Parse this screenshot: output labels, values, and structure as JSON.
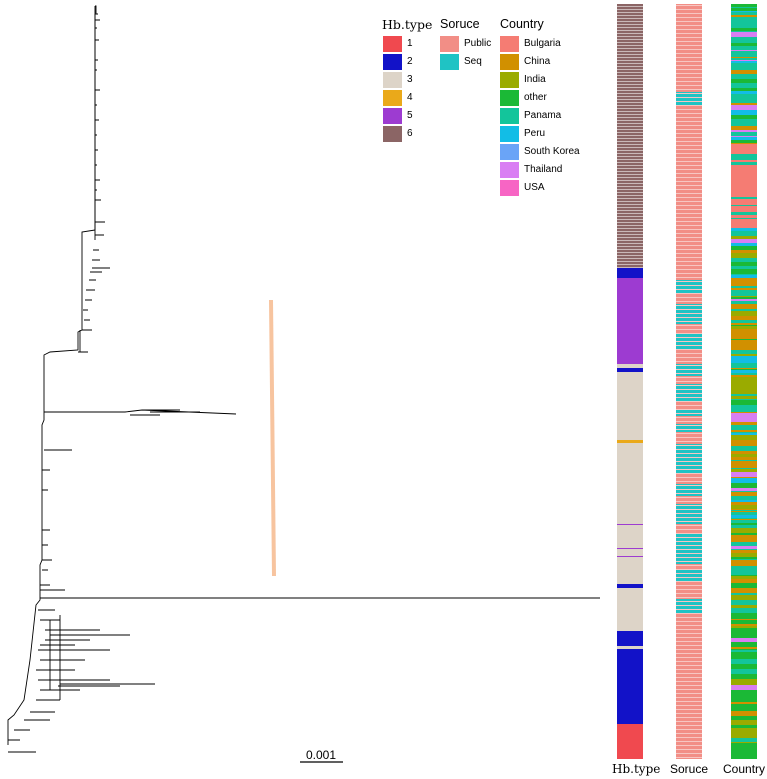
{
  "scale_label": "0.001",
  "legends": [
    {
      "title": "Hb.type",
      "items": [
        {
          "label": "1",
          "color": "#f0494f"
        },
        {
          "label": "2",
          "color": "#1212c8"
        },
        {
          "label": "3",
          "color": "#ddd4c8"
        },
        {
          "label": "4",
          "color": "#eaa91a"
        },
        {
          "label": "5",
          "color": "#9d3bd1"
        },
        {
          "label": "6",
          "color": "#8b6565"
        }
      ]
    },
    {
      "title": "Soruce",
      "items": [
        {
          "label": "Public",
          "color": "#f28e86"
        },
        {
          "label": "Seq",
          "color": "#1fc3c4"
        }
      ]
    },
    {
      "title": "Country",
      "items": [
        {
          "label": "Bulgaria",
          "color": "#f57c73"
        },
        {
          "label": "China",
          "color": "#d19000"
        },
        {
          "label": "India",
          "color": "#9aab00"
        },
        {
          "label": "other",
          "color": "#1bb936"
        },
        {
          "label": "Panama",
          "color": "#13c59b"
        },
        {
          "label": "Peru",
          "color": "#12bde6"
        },
        {
          "label": "South Korea",
          "color": "#6aa4f7"
        },
        {
          "label": "Thailand",
          "color": "#d97ef3"
        },
        {
          "label": "USA",
          "color": "#f765c4"
        }
      ]
    }
  ],
  "columns": [
    "Hb.type",
    "Soruce",
    "Country"
  ]
}
